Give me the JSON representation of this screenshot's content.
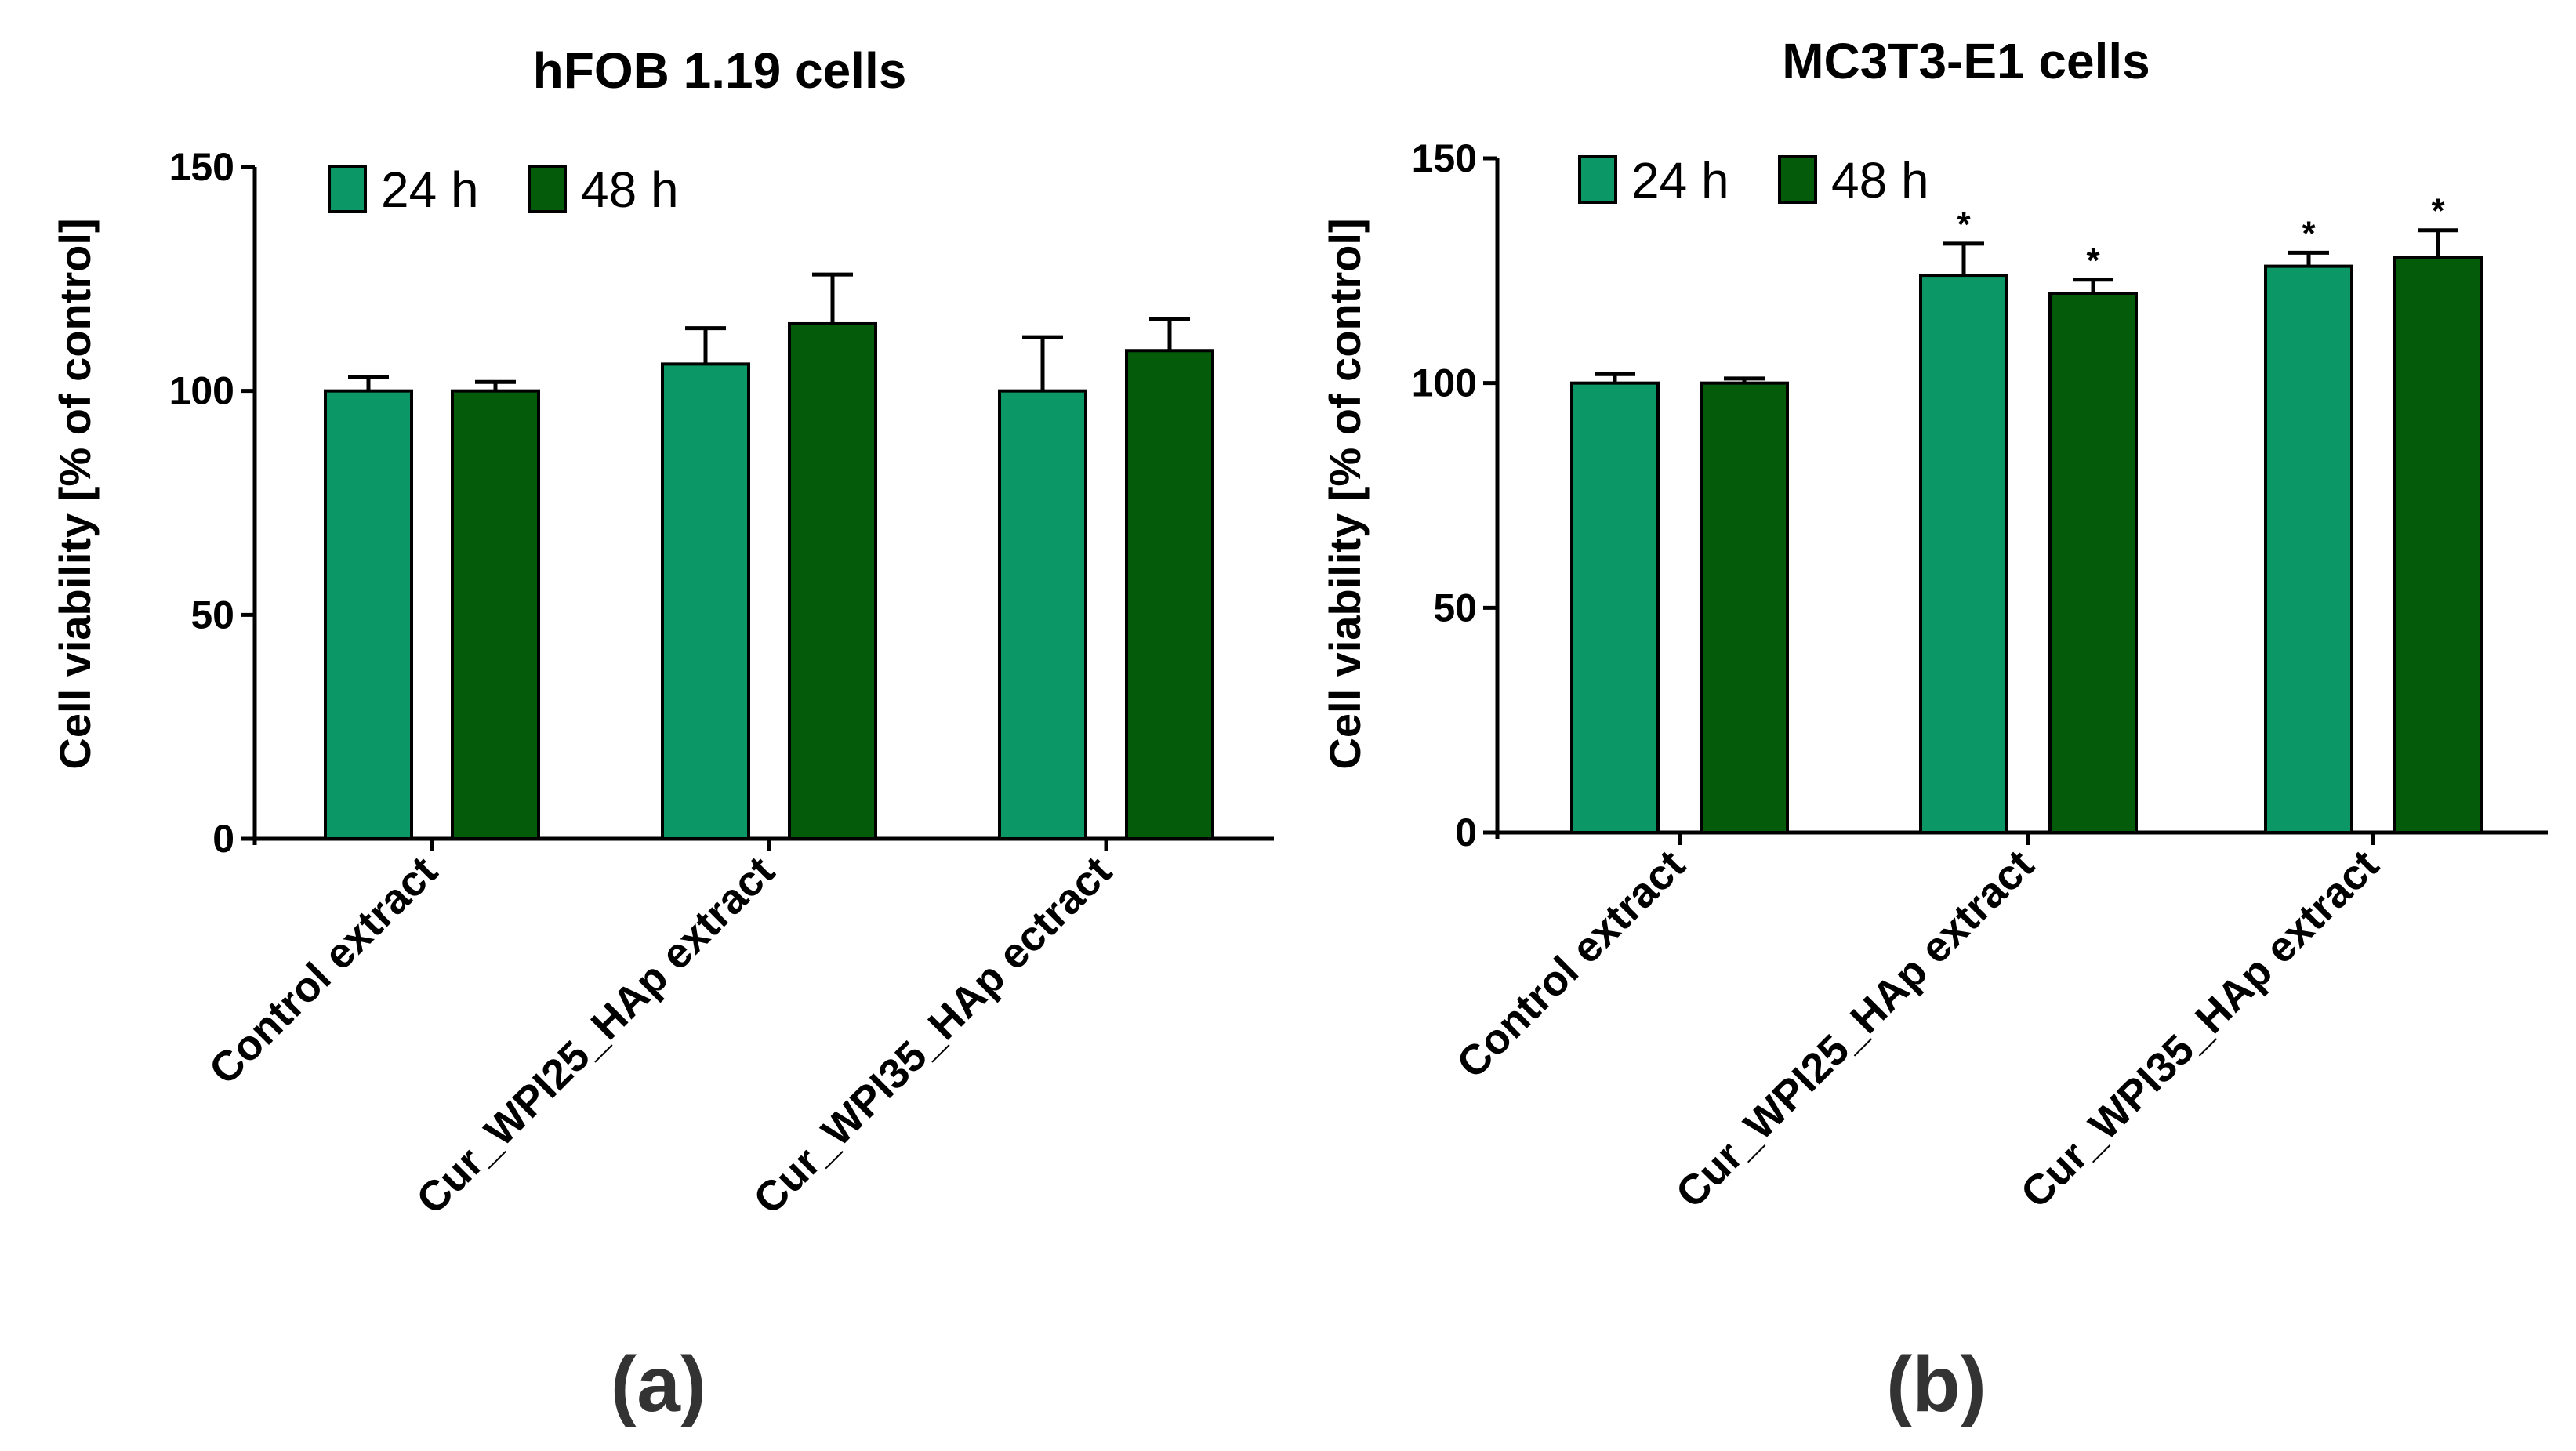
{
  "colors": {
    "series_24h": "#0c9866",
    "series_48h": "#045b0a"
  },
  "chart_data": [
    {
      "type": "bar",
      "panel_label": "(a)",
      "title": "hFOB 1.19 cells",
      "xlabel": "",
      "ylabel": "Cell viability [% of control]",
      "ylim": [
        0,
        150
      ],
      "yticks": [
        "0",
        "50",
        "100",
        "150"
      ],
      "categories": [
        "Control extract",
        "Cur_WPI25_HAp extract",
        "Cur_WPI35_HAp ectract"
      ],
      "series": [
        {
          "name": "24 h",
          "values": [
            100,
            106,
            100
          ],
          "errors": [
            3,
            8,
            12
          ],
          "significant": [
            false,
            false,
            false
          ]
        },
        {
          "name": "48 h",
          "values": [
            100,
            115,
            109
          ],
          "errors": [
            2,
            11,
            7
          ],
          "significant": [
            false,
            false,
            false
          ]
        }
      ],
      "significance_marker": "*"
    },
    {
      "type": "bar",
      "panel_label": "(b)",
      "title": "MC3T3-E1 cells",
      "xlabel": "",
      "ylabel": "Cell viability [% of control]",
      "ylim": [
        0,
        150
      ],
      "yticks": [
        "0",
        "50",
        "100",
        "150"
      ],
      "categories": [
        "Control extract",
        "Cur_WPI25_HAp extract",
        "Cur_WPI35_HAp extract"
      ],
      "series": [
        {
          "name": "24 h",
          "values": [
            100,
            124,
            126
          ],
          "errors": [
            2,
            7,
            3
          ],
          "significant": [
            false,
            true,
            true
          ]
        },
        {
          "name": "48 h",
          "values": [
            100,
            120,
            128
          ],
          "errors": [
            1,
            3,
            6
          ],
          "significant": [
            false,
            true,
            true
          ]
        }
      ],
      "significance_marker": "*"
    }
  ]
}
